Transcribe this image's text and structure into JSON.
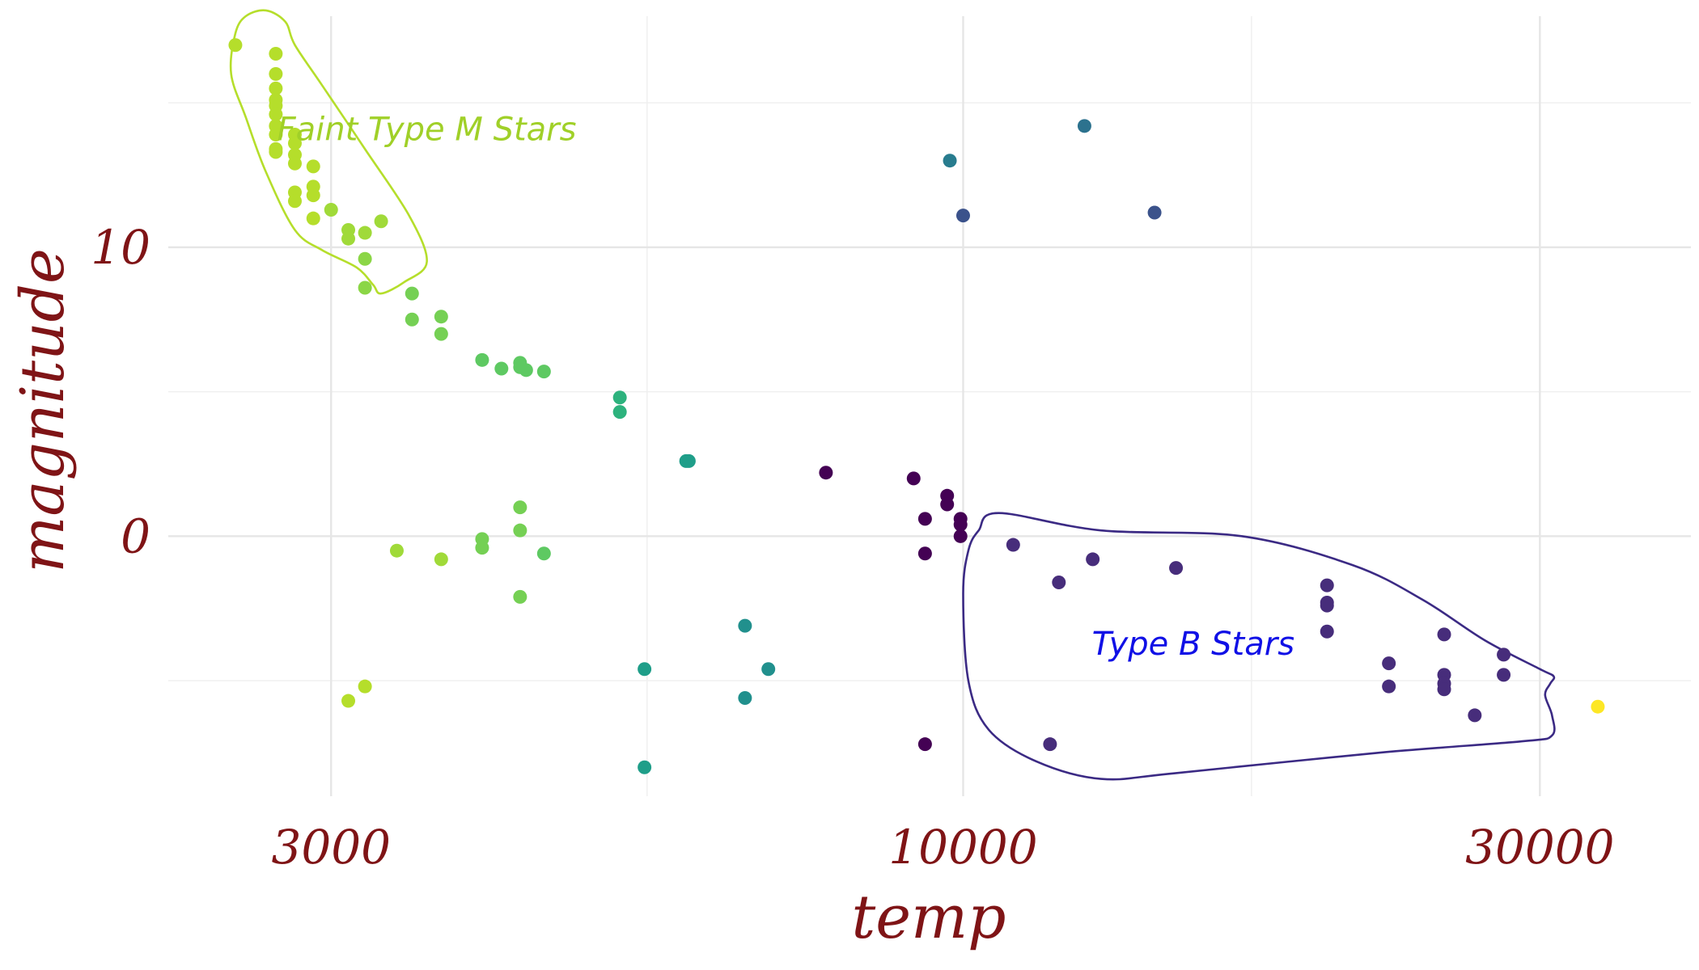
{
  "chart_data": {
    "type": "scatter",
    "title": "",
    "xlabel": "temp",
    "ylabel": "magnitude",
    "x_scale": "log10",
    "xlim": [
      2200,
      40000
    ],
    "ylim": [
      -9,
      18
    ],
    "x_ticks": [
      {
        "value": 3000,
        "label": "3000"
      },
      {
        "value": 10000,
        "label": "10000"
      },
      {
        "value": 30000,
        "label": "30000"
      }
    ],
    "y_ticks": [
      {
        "value": 0,
        "label": "0"
      },
      {
        "value": 10,
        "label": "10"
      }
    ],
    "x_minor_gridlines": [
      5477,
      17321
    ],
    "y_minor_gridlines": [
      -5,
      5,
      15
    ],
    "grid": true,
    "legend": "none",
    "color_scale": "viridis",
    "points": [
      {
        "x": 2500,
        "y": 17.0,
        "c": "#b5de2b"
      },
      {
        "x": 2700,
        "y": 16.7,
        "c": "#b5de2b"
      },
      {
        "x": 2700,
        "y": 16.0,
        "c": "#b5de2b"
      },
      {
        "x": 2700,
        "y": 15.5,
        "c": "#b5de2b"
      },
      {
        "x": 2700,
        "y": 15.1,
        "c": "#b5de2b"
      },
      {
        "x": 2700,
        "y": 14.9,
        "c": "#b5de2b"
      },
      {
        "x": 2700,
        "y": 14.6,
        "c": "#b5de2b"
      },
      {
        "x": 2700,
        "y": 14.2,
        "c": "#b5de2b"
      },
      {
        "x": 2700,
        "y": 13.9,
        "c": "#b5de2b"
      },
      {
        "x": 2700,
        "y": 13.4,
        "c": "#b5de2b"
      },
      {
        "x": 2700,
        "y": 13.3,
        "c": "#b5de2b"
      },
      {
        "x": 2800,
        "y": 13.9,
        "c": "#b5de2b"
      },
      {
        "x": 2800,
        "y": 13.6,
        "c": "#b5de2b"
      },
      {
        "x": 2800,
        "y": 13.2,
        "c": "#b5de2b"
      },
      {
        "x": 2800,
        "y": 12.9,
        "c": "#b5de2b"
      },
      {
        "x": 2800,
        "y": 11.9,
        "c": "#b5de2b"
      },
      {
        "x": 2800,
        "y": 11.6,
        "c": "#b5de2b"
      },
      {
        "x": 2900,
        "y": 12.8,
        "c": "#b5de2b"
      },
      {
        "x": 2900,
        "y": 12.1,
        "c": "#b5de2b"
      },
      {
        "x": 2900,
        "y": 11.8,
        "c": "#b5de2b"
      },
      {
        "x": 2900,
        "y": 11.0,
        "c": "#b5de2b"
      },
      {
        "x": 3000,
        "y": 11.3,
        "c": "#a0da39"
      },
      {
        "x": 3100,
        "y": 10.6,
        "c": "#a0da39"
      },
      {
        "x": 3100,
        "y": 10.3,
        "c": "#a0da39"
      },
      {
        "x": 3200,
        "y": 10.5,
        "c": "#a0da39"
      },
      {
        "x": 3200,
        "y": 9.6,
        "c": "#8bd646"
      },
      {
        "x": 3200,
        "y": 8.6,
        "c": "#8bd646"
      },
      {
        "x": 3300,
        "y": 10.9,
        "c": "#a0da39"
      },
      {
        "x": 3500,
        "y": 8.4,
        "c": "#75d054"
      },
      {
        "x": 3500,
        "y": 7.5,
        "c": "#75d054"
      },
      {
        "x": 3700,
        "y": 7.6,
        "c": "#75d054"
      },
      {
        "x": 3700,
        "y": 7.0,
        "c": "#75d054"
      },
      {
        "x": 4000,
        "y": 6.1,
        "c": "#5ec962"
      },
      {
        "x": 4150,
        "y": 5.8,
        "c": "#5ec962"
      },
      {
        "x": 4300,
        "y": 6.0,
        "c": "#5ec962"
      },
      {
        "x": 4300,
        "y": 5.85,
        "c": "#5ec962"
      },
      {
        "x": 4350,
        "y": 5.75,
        "c": "#5ec962"
      },
      {
        "x": 4500,
        "y": 5.7,
        "c": "#5ec962"
      },
      {
        "x": 5200,
        "y": 4.8,
        "c": "#2db27d"
      },
      {
        "x": 5200,
        "y": 4.3,
        "c": "#2db27d"
      },
      {
        "x": 5900,
        "y": 2.6,
        "c": "#1f9e89"
      },
      {
        "x": 5930,
        "y": 2.6,
        "c": "#1f9e89"
      },
      {
        "x": 3400,
        "y": -0.5,
        "c": "#a0da39"
      },
      {
        "x": 3700,
        "y": -0.8,
        "c": "#a0da39"
      },
      {
        "x": 4000,
        "y": -0.1,
        "c": "#75d054"
      },
      {
        "x": 4000,
        "y": -0.4,
        "c": "#75d054"
      },
      {
        "x": 4300,
        "y": 1.0,
        "c": "#75d054"
      },
      {
        "x": 4300,
        "y": 0.2,
        "c": "#75d054"
      },
      {
        "x": 4300,
        "y": -2.1,
        "c": "#75d054"
      },
      {
        "x": 4500,
        "y": -0.6,
        "c": "#5ec962"
      },
      {
        "x": 3100,
        "y": -5.7,
        "c": "#b5de2b"
      },
      {
        "x": 3200,
        "y": -5.2,
        "c": "#b5de2b"
      },
      {
        "x": 5450,
        "y": -4.6,
        "c": "#1f9e89"
      },
      {
        "x": 5450,
        "y": -8.0,
        "c": "#1f9e89"
      },
      {
        "x": 6600,
        "y": -3.1,
        "c": "#21908d"
      },
      {
        "x": 6600,
        "y": -5.6,
        "c": "#21908d"
      },
      {
        "x": 6900,
        "y": -4.6,
        "c": "#21908d"
      },
      {
        "x": 7700,
        "y": 2.2,
        "c": "#440154"
      },
      {
        "x": 9100,
        "y": 2.0,
        "c": "#440154"
      },
      {
        "x": 9700,
        "y": 1.4,
        "c": "#440154"
      },
      {
        "x": 9700,
        "y": 1.1,
        "c": "#440154"
      },
      {
        "x": 9300,
        "y": 0.6,
        "c": "#440154"
      },
      {
        "x": 9300,
        "y": -0.6,
        "c": "#440154"
      },
      {
        "x": 9300,
        "y": -7.2,
        "c": "#440154"
      },
      {
        "x": 9950,
        "y": 0.6,
        "c": "#440154"
      },
      {
        "x": 9950,
        "y": 0.4,
        "c": "#440154"
      },
      {
        "x": 9950,
        "y": 0.0,
        "c": "#440154"
      },
      {
        "x": 9750,
        "y": 13.0,
        "c": "#287c8e"
      },
      {
        "x": 10000,
        "y": 11.1,
        "c": "#3b528b"
      },
      {
        "x": 12600,
        "y": 14.2,
        "c": "#2c728e"
      },
      {
        "x": 14400,
        "y": 11.2,
        "c": "#3b528b"
      },
      {
        "x": 11000,
        "y": -0.3,
        "c": "#472d7b"
      },
      {
        "x": 12000,
        "y": -1.6,
        "c": "#472d7b"
      },
      {
        "x": 11800,
        "y": -7.2,
        "c": "#472d7b"
      },
      {
        "x": 12800,
        "y": -0.8,
        "c": "#472d7b"
      },
      {
        "x": 15000,
        "y": -1.1,
        "c": "#472d7b"
      },
      {
        "x": 20000,
        "y": -1.7,
        "c": "#472d7b"
      },
      {
        "x": 20000,
        "y": -2.3,
        "c": "#472d7b"
      },
      {
        "x": 20000,
        "y": -2.4,
        "c": "#472d7b"
      },
      {
        "x": 20000,
        "y": -3.3,
        "c": "#472d7b"
      },
      {
        "x": 22500,
        "y": -4.4,
        "c": "#472d7b"
      },
      {
        "x": 22500,
        "y": -5.2,
        "c": "#472d7b"
      },
      {
        "x": 25000,
        "y": -3.4,
        "c": "#472d7b"
      },
      {
        "x": 25000,
        "y": -4.8,
        "c": "#472d7b"
      },
      {
        "x": 25000,
        "y": -5.1,
        "c": "#472d7b"
      },
      {
        "x": 25000,
        "y": -5.3,
        "c": "#472d7b"
      },
      {
        "x": 26500,
        "y": -6.2,
        "c": "#472d7b"
      },
      {
        "x": 28000,
        "y": -4.1,
        "c": "#472d7b"
      },
      {
        "x": 28000,
        "y": -4.8,
        "c": "#472d7b"
      },
      {
        "x": 33500,
        "y": -5.9,
        "c": "#fde725"
      }
    ],
    "annotations": [
      {
        "label": "Faint Type M Stars",
        "color": "#a0d028",
        "anchor": {
          "x": 3600,
          "y": 13.7
        },
        "outline": [
          [
            2550,
            18.0
          ],
          [
            2500,
            17.4
          ],
          [
            2480,
            16.0
          ],
          [
            2550,
            14.5
          ],
          [
            2650,
            12.6
          ],
          [
            2800,
            10.6
          ],
          [
            2950,
            9.9
          ],
          [
            3150,
            9.3
          ],
          [
            3250,
            8.7
          ],
          [
            3300,
            8.4
          ],
          [
            3450,
            8.8
          ],
          [
            3600,
            9.5
          ],
          [
            3480,
            11.1
          ],
          [
            3200,
            13.4
          ],
          [
            2950,
            15.6
          ],
          [
            2800,
            17.0
          ],
          [
            2750,
            17.8
          ],
          [
            2650,
            18.2
          ],
          [
            2550,
            18.0
          ]
        ]
      },
      {
        "label": "Type B Stars",
        "color": "#1010e6",
        "anchor": {
          "x": 15500,
          "y": -4.1
        },
        "outline": [
          [
            10300,
            0.2
          ],
          [
            10700,
            0.8
          ],
          [
            13000,
            0.2
          ],
          [
            17000,
            0
          ],
          [
            21000,
            -1.0
          ],
          [
            24000,
            -2.2
          ],
          [
            27000,
            -3.6
          ],
          [
            30000,
            -4.6
          ],
          [
            30800,
            -4.85
          ],
          [
            30600,
            -5.1
          ],
          [
            30300,
            -5.5
          ],
          [
            30700,
            -6.2
          ],
          [
            30700,
            -6.9
          ],
          [
            29000,
            -7.1
          ],
          [
            22000,
            -7.5
          ],
          [
            15000,
            -8.2
          ],
          [
            13000,
            -8.4
          ],
          [
            11500,
            -7.8
          ],
          [
            10500,
            -6.7
          ],
          [
            10100,
            -5.0
          ],
          [
            10000,
            -2.0
          ],
          [
            10100,
            -0.5
          ],
          [
            10300,
            0.2
          ]
        ]
      }
    ]
  }
}
